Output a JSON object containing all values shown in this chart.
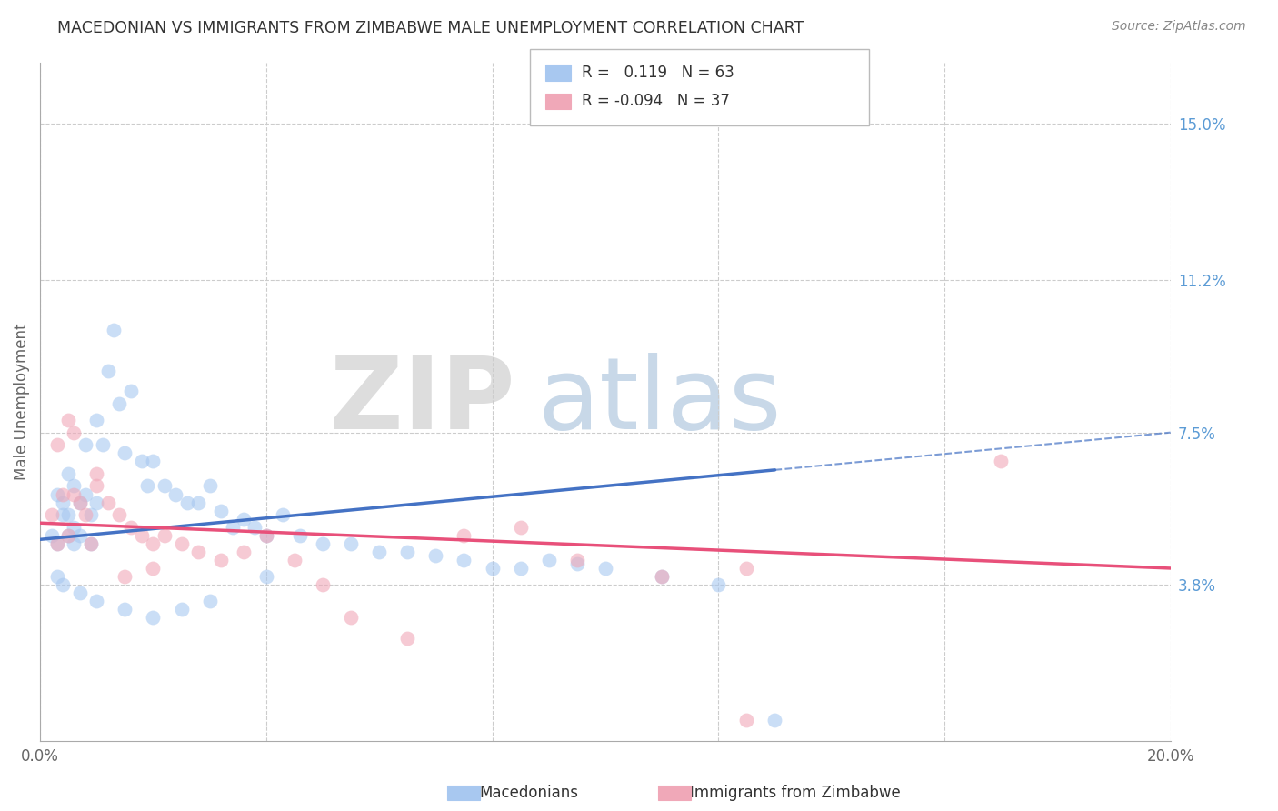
{
  "title": "MACEDONIAN VS IMMIGRANTS FROM ZIMBABWE MALE UNEMPLOYMENT CORRELATION CHART",
  "source": "Source: ZipAtlas.com",
  "ylabel": "Male Unemployment",
  "xlim": [
    0.0,
    0.2
  ],
  "ylim": [
    0.0,
    0.165
  ],
  "ytick_vals": [
    0.038,
    0.075,
    0.112,
    0.15
  ],
  "ytick_labels": [
    "3.8%",
    "7.5%",
    "11.2%",
    "15.0%"
  ],
  "xtick_vals": [
    0.0,
    0.04,
    0.08,
    0.12,
    0.16,
    0.2
  ],
  "xtick_labels": [
    "0.0%",
    "",
    "",
    "",
    "",
    "20.0%"
  ],
  "legend_macedonian": "Macedonians",
  "legend_zimbabwe": "Immigrants from Zimbabwe",
  "r_macedonian": 0.119,
  "n_macedonian": 63,
  "r_zimbabwe": -0.094,
  "n_zimbabwe": 37,
  "color_macedonian": "#A8C8F0",
  "color_zimbabwe": "#F0A8B8",
  "color_blue": "#4472C4",
  "color_pink": "#E8507A",
  "grid_color": "#CCCCCC",
  "text_color": "#333333",
  "axis_label_color": "#666666",
  "right_axis_color": "#5B9BD5",
  "mac_line_start_y": 0.049,
  "mac_line_end_y": 0.075,
  "zim_line_start_y": 0.053,
  "zim_line_end_y": 0.042,
  "mac_x": [
    0.002,
    0.003,
    0.003,
    0.004,
    0.004,
    0.005,
    0.005,
    0.005,
    0.006,
    0.006,
    0.006,
    0.007,
    0.007,
    0.008,
    0.008,
    0.009,
    0.009,
    0.01,
    0.01,
    0.011,
    0.012,
    0.013,
    0.014,
    0.015,
    0.016,
    0.018,
    0.019,
    0.02,
    0.022,
    0.024,
    0.026,
    0.028,
    0.03,
    0.032,
    0.034,
    0.036,
    0.038,
    0.04,
    0.043,
    0.046,
    0.05,
    0.055,
    0.06,
    0.065,
    0.07,
    0.075,
    0.08,
    0.085,
    0.09,
    0.095,
    0.1,
    0.11,
    0.12,
    0.13,
    0.003,
    0.004,
    0.007,
    0.01,
    0.015,
    0.02,
    0.025,
    0.03,
    0.04
  ],
  "mac_y": [
    0.05,
    0.06,
    0.048,
    0.055,
    0.058,
    0.05,
    0.055,
    0.065,
    0.048,
    0.052,
    0.062,
    0.05,
    0.058,
    0.06,
    0.072,
    0.048,
    0.055,
    0.078,
    0.058,
    0.072,
    0.09,
    0.1,
    0.082,
    0.07,
    0.085,
    0.068,
    0.062,
    0.068,
    0.062,
    0.06,
    0.058,
    0.058,
    0.062,
    0.056,
    0.052,
    0.054,
    0.052,
    0.05,
    0.055,
    0.05,
    0.048,
    0.048,
    0.046,
    0.046,
    0.045,
    0.044,
    0.042,
    0.042,
    0.044,
    0.043,
    0.042,
    0.04,
    0.038,
    0.005,
    0.04,
    0.038,
    0.036,
    0.034,
    0.032,
    0.03,
    0.032,
    0.034,
    0.04
  ],
  "zim_x": [
    0.002,
    0.003,
    0.004,
    0.005,
    0.005,
    0.006,
    0.007,
    0.008,
    0.009,
    0.01,
    0.012,
    0.014,
    0.016,
    0.018,
    0.02,
    0.022,
    0.025,
    0.028,
    0.032,
    0.036,
    0.04,
    0.045,
    0.05,
    0.055,
    0.065,
    0.075,
    0.085,
    0.095,
    0.11,
    0.125,
    0.003,
    0.006,
    0.01,
    0.015,
    0.02,
    0.17,
    0.125
  ],
  "zim_y": [
    0.055,
    0.048,
    0.06,
    0.05,
    0.078,
    0.06,
    0.058,
    0.055,
    0.048,
    0.062,
    0.058,
    0.055,
    0.052,
    0.05,
    0.048,
    0.05,
    0.048,
    0.046,
    0.044,
    0.046,
    0.05,
    0.044,
    0.038,
    0.03,
    0.025,
    0.05,
    0.052,
    0.044,
    0.04,
    0.042,
    0.072,
    0.075,
    0.065,
    0.04,
    0.042,
    0.068,
    0.005
  ]
}
